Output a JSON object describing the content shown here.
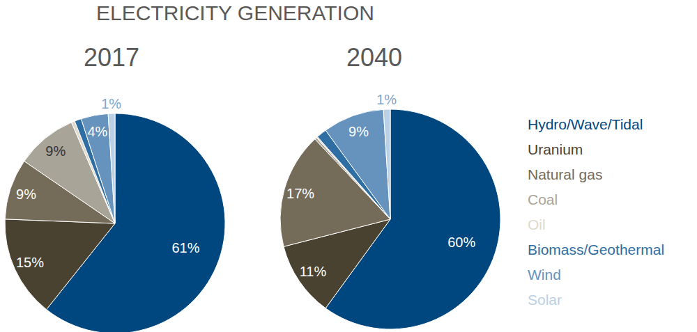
{
  "title": "ELECTRICITY GENERATION",
  "legend": "right",
  "chart_data": [
    {
      "type": "pie",
      "title": "2017",
      "categories": [
        "Hydro/Wave/Tidal",
        "Uranium",
        "Natural gas",
        "Coal",
        "Oil",
        "Biomass/Geothermal",
        "Wind",
        "Solar"
      ],
      "values": [
        61,
        15,
        9,
        9,
        0.5,
        1,
        4,
        1
      ],
      "value_labels": [
        "61%",
        "15%",
        "9%",
        "9%",
        null,
        null,
        "4%",
        "1%"
      ],
      "data_labels": true,
      "colors": [
        "#00477f",
        "#4a4231",
        "#746b59",
        "#a8a497",
        "#dedacd",
        "#2e6ea3",
        "#6593bd",
        "#bad0e4"
      ]
    },
    {
      "type": "pie",
      "title": "2040",
      "categories": [
        "Hydro/Wave/Tidal",
        "Uranium",
        "Natural gas",
        "Coal",
        "Oil",
        "Biomass/Geothermal",
        "Wind",
        "Solar"
      ],
      "values": [
        60,
        11,
        17,
        0.3,
        0.2,
        1.5,
        9,
        1
      ],
      "value_labels": [
        "60%",
        "11%",
        "17%",
        null,
        null,
        null,
        "9%",
        "1%"
      ],
      "data_labels": true,
      "colors": [
        "#00477f",
        "#4a4231",
        "#746b59",
        "#a8a497",
        "#dedacd",
        "#2e6ea3",
        "#6593bd",
        "#bad0e4"
      ]
    }
  ]
}
